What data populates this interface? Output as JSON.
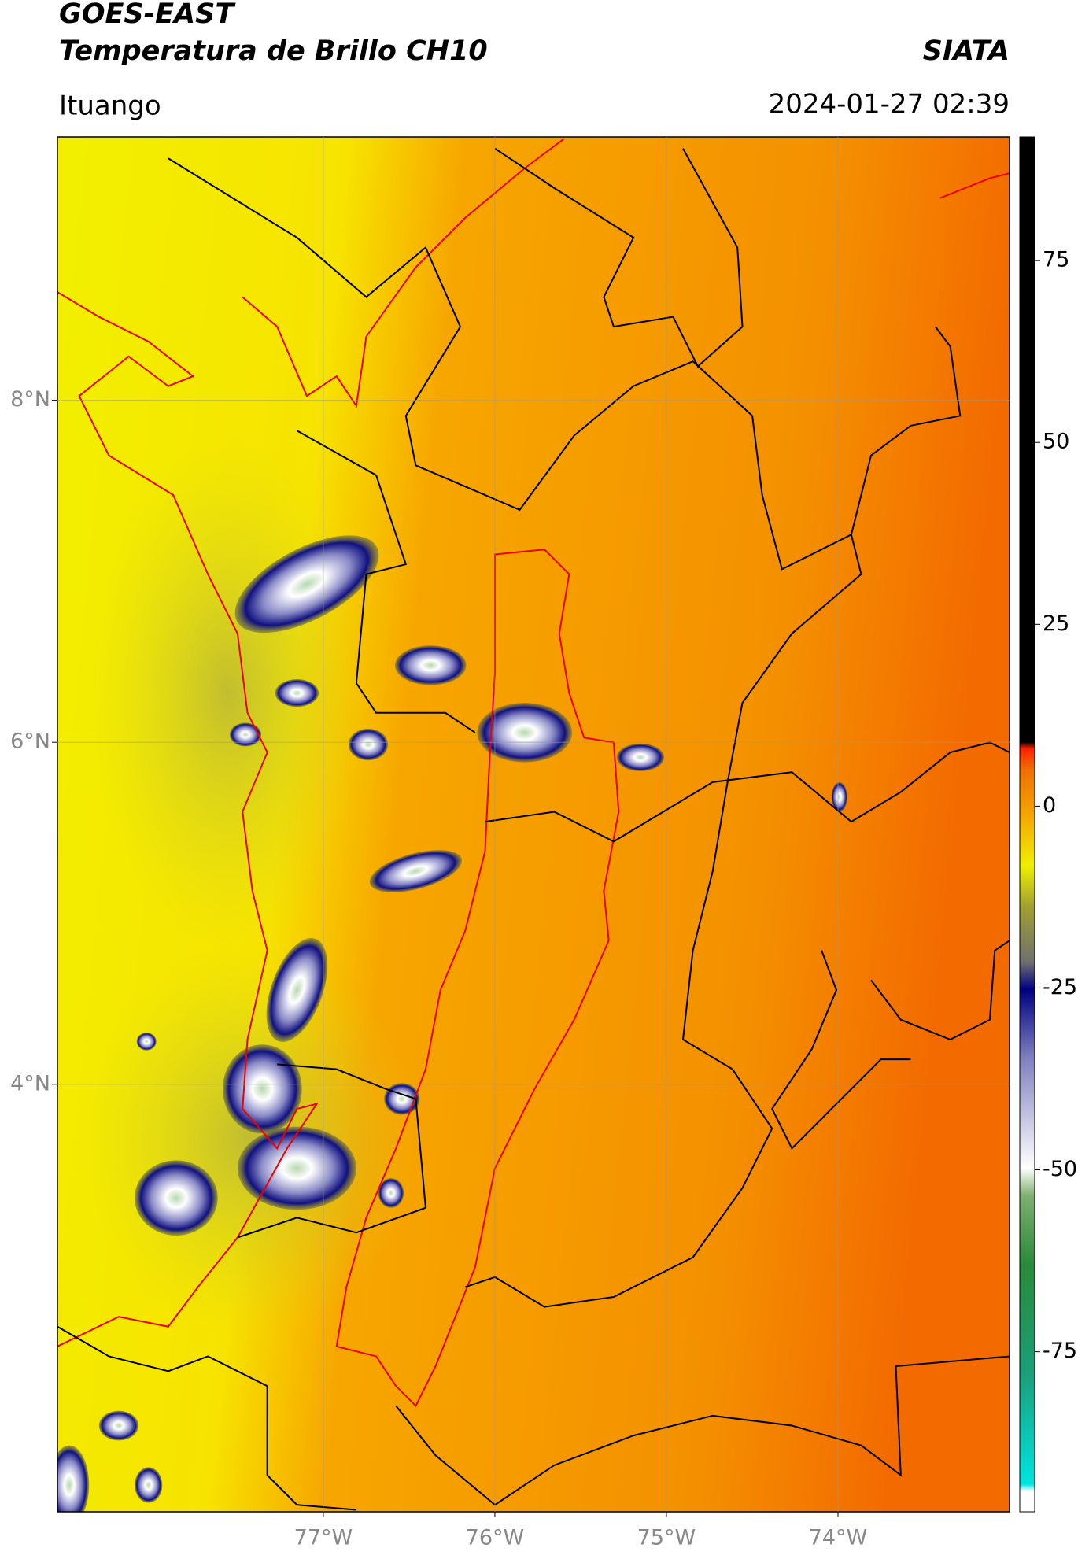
{
  "header": {
    "title": "GOES-EAST",
    "subtitle": "Temperatura de Brillo CH10",
    "brand": "SIATA",
    "location": "Ituango",
    "datetime": "2024-01-27 02:39"
  },
  "map": {
    "xlim": [
      -78.55,
      -73
    ],
    "ylim": [
      1.5,
      9.54
    ],
    "grid": true,
    "xticks": [
      {
        "value": -77,
        "label": "77°W"
      },
      {
        "value": -76,
        "label": "76°W"
      },
      {
        "value": -75,
        "label": "75°W"
      },
      {
        "value": -74,
        "label": "74°W"
      }
    ],
    "yticks": [
      {
        "value": 8,
        "label": "8°N"
      },
      {
        "value": 6,
        "label": "6°N"
      },
      {
        "value": 4,
        "label": "4°N"
      }
    ]
  },
  "colorbar": {
    "lim": [
      -97,
      92
    ],
    "ticks": [
      75,
      50,
      25,
      0,
      -25,
      -50,
      -75
    ]
  }
}
